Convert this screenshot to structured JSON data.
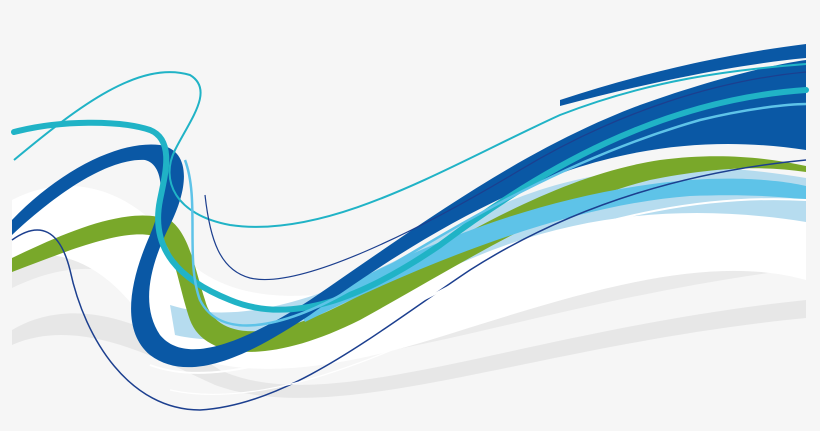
{
  "artwork": {
    "subject": "abstract-wave-swoosh",
    "colors": {
      "background": "#f6f6f6",
      "white_band": "#ffffff",
      "gray_shadow": "#e6e6e6",
      "light_blue": "#a9d6ec",
      "sky_blue": "#5ec3e8",
      "teal": "#20b3c6",
      "royal_blue": "#0a58a5",
      "navy_line": "#1c3f8f",
      "green": "#79a82a"
    }
  }
}
